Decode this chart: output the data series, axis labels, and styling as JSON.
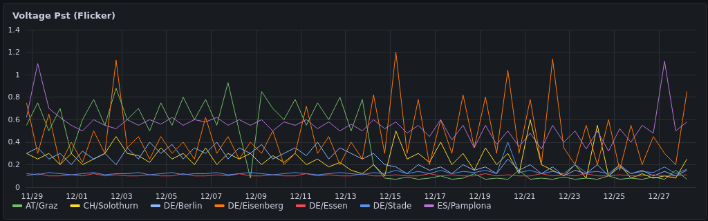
{
  "chart_data": {
    "type": "line",
    "title": "Voltage Pst (Flicker)",
    "x": [
      "--11-28T18:00",
      "--11-29T06:00",
      "--11-29T18:00",
      "--11-30T06:00",
      "--11-30T18:00",
      "--12-01T06:00",
      "--12-01T18:00",
      "--12-02T06:00",
      "--12-02T18:00",
      "--12-03T06:00",
      "--12-03T18:00",
      "--12-04T06:00",
      "--12-04T18:00",
      "--12-05T06:00",
      "--12-05T18:00",
      "--12-06T06:00",
      "--12-06T18:00",
      "--12-07T06:00",
      "--12-07T18:00",
      "--12-08T06:00",
      "--12-08T18:00",
      "--12-09T06:00",
      "--12-09T18:00",
      "--12-10T06:00",
      "--12-10T18:00",
      "--12-11T06:00",
      "--12-11T18:00",
      "--12-12T06:00",
      "--12-12T18:00",
      "--12-13T06:00",
      "--12-13T18:00",
      "--12-14T06:00",
      "--12-14T18:00",
      "--12-15T06:00",
      "--12-15T18:00",
      "--12-16T06:00",
      "--12-16T18:00",
      "--12-17T06:00",
      "--12-17T18:00",
      "--12-18T06:00",
      "--12-18T18:00",
      "--12-19T06:00",
      "--12-19T18:00",
      "--12-20T06:00",
      "--12-20T18:00",
      "--12-21T06:00",
      "--12-21T18:00",
      "--12-22T06:00",
      "--12-22T18:00",
      "--12-23T06:00",
      "--12-23T18:00",
      "--12-24T06:00",
      "--12-24T18:00",
      "--12-25T06:00",
      "--12-25T18:00",
      "--12-26T06:00",
      "--12-26T18:00",
      "--12-27T06:00",
      "--12-27T18:00",
      "--12-28T06:00"
    ],
    "series": [
      {
        "name": "AT/Graz",
        "color": "#73bf69",
        "values": [
          0.55,
          0.75,
          0.5,
          0.7,
          0.3,
          0.6,
          0.78,
          0.55,
          0.88,
          0.6,
          0.7,
          0.5,
          0.75,
          0.55,
          0.8,
          0.6,
          0.78,
          0.55,
          0.93,
          0.5,
          0.08,
          0.85,
          0.7,
          0.6,
          0.78,
          0.55,
          0.75,
          0.6,
          0.8,
          0.5,
          0.78,
          0.2,
          0.08,
          0.07,
          0.09,
          0.07,
          0.08,
          0.1,
          0.07,
          0.08,
          0.12,
          0.07,
          0.08,
          0.07,
          0.15,
          0.07,
          0.08,
          0.07,
          0.09,
          0.07,
          0.08,
          0.07,
          0.1,
          0.07,
          0.08,
          0.07,
          0.09,
          0.07,
          0.15,
          0.07
        ]
      },
      {
        "name": "CH/Solothurn",
        "color": "#fade2a",
        "values": [
          0.3,
          0.25,
          0.3,
          0.2,
          0.3,
          0.2,
          0.25,
          0.3,
          0.45,
          0.3,
          0.28,
          0.22,
          0.35,
          0.25,
          0.3,
          0.2,
          0.35,
          0.2,
          0.3,
          0.25,
          0.3,
          0.2,
          0.28,
          0.22,
          0.3,
          0.2,
          0.25,
          0.18,
          0.22,
          0.15,
          0.12,
          0.2,
          0.1,
          0.5,
          0.25,
          0.3,
          0.22,
          0.4,
          0.2,
          0.3,
          0.15,
          0.35,
          0.2,
          0.3,
          0.12,
          0.6,
          0.2,
          0.15,
          0.1,
          0.2,
          0.08,
          0.55,
          0.1,
          0.2,
          0.08,
          0.12,
          0.08,
          0.1,
          0.08,
          0.25
        ]
      },
      {
        "name": "DE/Berlin",
        "color": "#8ab8ff",
        "values": [
          0.3,
          0.35,
          0.25,
          0.3,
          0.2,
          0.32,
          0.25,
          0.3,
          0.2,
          0.35,
          0.25,
          0.4,
          0.3,
          0.38,
          0.25,
          0.35,
          0.3,
          0.4,
          0.25,
          0.35,
          0.3,
          0.38,
          0.25,
          0.3,
          0.35,
          0.28,
          0.4,
          0.25,
          0.35,
          0.3,
          0.25,
          0.3,
          0.2,
          0.18,
          0.12,
          0.2,
          0.15,
          0.18,
          0.12,
          0.2,
          0.15,
          0.18,
          0.12,
          0.25,
          0.15,
          0.2,
          0.12,
          0.18,
          0.1,
          0.15,
          0.12,
          0.2,
          0.1,
          0.18,
          0.12,
          0.15,
          0.1,
          0.14,
          0.1,
          0.15
        ]
      },
      {
        "name": "DE/Eisenberg",
        "color": "#ff780a",
        "values": [
          0.75,
          0.3,
          0.65,
          0.2,
          0.4,
          0.22,
          0.5,
          0.3,
          1.13,
          0.35,
          0.45,
          0.25,
          0.45,
          0.3,
          0.4,
          0.25,
          0.62,
          0.3,
          0.45,
          0.25,
          0.4,
          0.3,
          0.5,
          0.2,
          0.3,
          0.72,
          0.3,
          0.45,
          0.2,
          0.4,
          0.25,
          0.82,
          0.3,
          1.2,
          0.3,
          0.78,
          0.2,
          0.6,
          0.3,
          0.82,
          0.35,
          0.8,
          0.3,
          1.04,
          0.3,
          0.78,
          0.2,
          1.14,
          0.35,
          0.2,
          0.55,
          0.2,
          0.6,
          0.15,
          0.55,
          0.2,
          0.45,
          0.3,
          0.2,
          0.85
        ]
      },
      {
        "name": "DE/Essen",
        "color": "#f2495c",
        "values": [
          0.1,
          0.12,
          0.1,
          0.1,
          0.11,
          0.1,
          0.12,
          0.1,
          0.11,
          0.1,
          0.1,
          0.11,
          0.1,
          0.1,
          0.12,
          0.1,
          0.1,
          0.11,
          0.1,
          0.12,
          0.1,
          0.1,
          0.11,
          0.1,
          0.1,
          0.12,
          0.1,
          0.11,
          0.1,
          0.1,
          0.12,
          0.1,
          0.1,
          0.11,
          0.1,
          0.1,
          0.12,
          0.1,
          0.11,
          0.1,
          0.1,
          0.12,
          0.1,
          0.11,
          0.1,
          0.1,
          0.12,
          0.1,
          0.11,
          0.1,
          0.12,
          0.1,
          0.1,
          0.11,
          0.1,
          0.1,
          0.11,
          0.1,
          0.1,
          0.11
        ]
      },
      {
        "name": "DE/Stade",
        "color": "#5794f2",
        "values": [
          0.12,
          0.11,
          0.13,
          0.12,
          0.11,
          0.12,
          0.13,
          0.11,
          0.12,
          0.12,
          0.13,
          0.11,
          0.12,
          0.13,
          0.11,
          0.12,
          0.12,
          0.13,
          0.11,
          0.12,
          0.13,
          0.12,
          0.11,
          0.12,
          0.13,
          0.12,
          0.11,
          0.12,
          0.13,
          0.12,
          0.11,
          0.13,
          0.12,
          0.15,
          0.12,
          0.14,
          0.12,
          0.15,
          0.12,
          0.14,
          0.13,
          0.15,
          0.12,
          0.4,
          0.13,
          0.15,
          0.12,
          0.14,
          0.12,
          0.2,
          0.13,
          0.14,
          0.12,
          0.2,
          0.12,
          0.14,
          0.13,
          0.18,
          0.12,
          0.16
        ]
      },
      {
        "name": "ES/Pamplona",
        "color": "#b877d9",
        "values": [
          0.62,
          1.1,
          0.7,
          0.62,
          0.55,
          0.5,
          0.6,
          0.55,
          0.52,
          0.6,
          0.55,
          0.6,
          0.56,
          0.62,
          0.55,
          0.6,
          0.58,
          0.62,
          0.55,
          0.6,
          0.55,
          0.6,
          0.5,
          0.58,
          0.55,
          0.6,
          0.52,
          0.58,
          0.5,
          0.56,
          0.5,
          0.6,
          0.52,
          0.58,
          0.48,
          0.55,
          0.45,
          0.6,
          0.42,
          0.55,
          0.35,
          0.55,
          0.38,
          0.5,
          0.36,
          0.48,
          0.34,
          0.55,
          0.4,
          0.5,
          0.34,
          0.5,
          0.32,
          0.52,
          0.4,
          0.55,
          0.48,
          1.12,
          0.5,
          0.58
        ]
      }
    ],
    "xlim": [
      "--11-28T17:00",
      "--12-28T16:00"
    ],
    "xticks": [
      {
        "value": "--11-29",
        "label": "11/29"
      },
      {
        "value": "--12-01",
        "label": "12/01"
      },
      {
        "value": "--12-03",
        "label": "12/03"
      },
      {
        "value": "--12-05",
        "label": "12/05"
      },
      {
        "value": "--12-07",
        "label": "12/07"
      },
      {
        "value": "--12-09",
        "label": "12/09"
      },
      {
        "value": "--12-11",
        "label": "12/11"
      },
      {
        "value": "--12-13",
        "label": "12/13"
      },
      {
        "value": "--12-15",
        "label": "12/15"
      },
      {
        "value": "--12-17",
        "label": "12/17"
      },
      {
        "value": "--12-19",
        "label": "12/19"
      },
      {
        "value": "--12-21",
        "label": "12/21"
      },
      {
        "value": "--12-23",
        "label": "12/23"
      },
      {
        "value": "--12-25",
        "label": "12/25"
      },
      {
        "value": "--12-27",
        "label": "12/27"
      }
    ],
    "ylim": [
      0,
      1.4
    ],
    "yticks": [
      0,
      0.2,
      0.4,
      0.6,
      0.8,
      1,
      1.2,
      1.4
    ],
    "grid": true,
    "legend": "bottom left"
  }
}
